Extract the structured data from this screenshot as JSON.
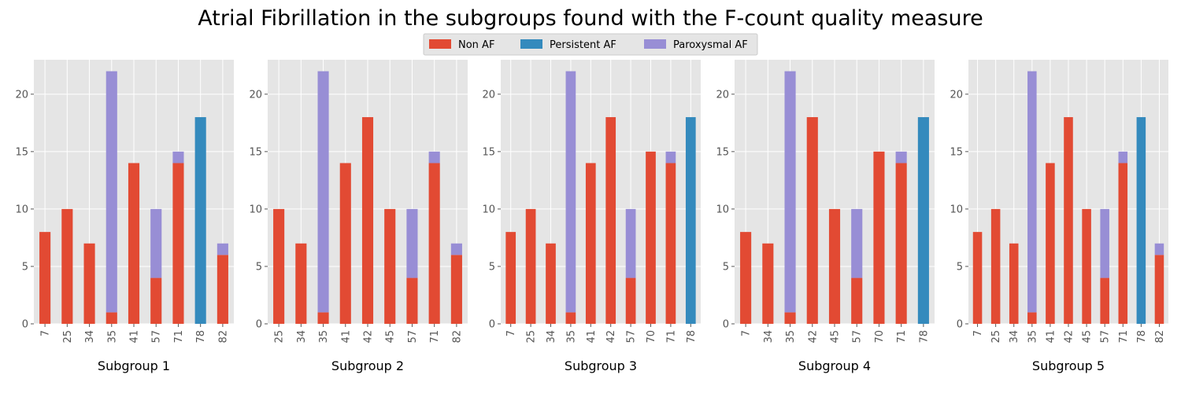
{
  "title": "Atrial Fibrillation in the subgroups found with the F-count quality measure",
  "legend": {
    "placement": "top-center",
    "entries": [
      {
        "name": "Non AF",
        "color": "#E24A33"
      },
      {
        "name": "Persistent AF",
        "color": "#348ABD"
      },
      {
        "name": "Paroxysmal AF",
        "color": "#988ED5"
      }
    ]
  },
  "colors": {
    "panel_background": "#E5E5E5",
    "grid": "#FFFFFF",
    "tick_text": "#555555"
  },
  "chart_data": [
    {
      "type": "bar",
      "stacked": true,
      "title": "",
      "xlabel": "Subgroup 1",
      "ylabel": "",
      "ylim": [
        0,
        23
      ],
      "yticks": [
        0,
        5,
        10,
        15,
        20
      ],
      "grid": true,
      "categories": [
        "7",
        "25",
        "34",
        "35",
        "41",
        "57",
        "71",
        "78",
        "82"
      ],
      "series": [
        {
          "name": "Non AF",
          "values": [
            8,
            10,
            7,
            1,
            14,
            4,
            14,
            0,
            6
          ]
        },
        {
          "name": "Persistent AF",
          "values": [
            0,
            0,
            0,
            0,
            0,
            0,
            0,
            18,
            0
          ]
        },
        {
          "name": "Paroxysmal AF",
          "values": [
            0,
            0,
            0,
            21,
            0,
            6,
            1,
            0,
            1
          ]
        }
      ]
    },
    {
      "type": "bar",
      "stacked": true,
      "title": "",
      "xlabel": "Subgroup 2",
      "ylabel": "",
      "ylim": [
        0,
        23
      ],
      "yticks": [
        0,
        5,
        10,
        15,
        20
      ],
      "grid": true,
      "categories": [
        "25",
        "34",
        "35",
        "41",
        "42",
        "45",
        "57",
        "71",
        "82"
      ],
      "series": [
        {
          "name": "Non AF",
          "values": [
            10,
            7,
            1,
            14,
            18,
            10,
            4,
            14,
            6
          ]
        },
        {
          "name": "Persistent AF",
          "values": [
            0,
            0,
            0,
            0,
            0,
            0,
            0,
            0,
            0
          ]
        },
        {
          "name": "Paroxysmal AF",
          "values": [
            0,
            0,
            21,
            0,
            0,
            0,
            6,
            1,
            1
          ]
        }
      ]
    },
    {
      "type": "bar",
      "stacked": true,
      "title": "",
      "xlabel": "Subgroup 3",
      "ylabel": "",
      "ylim": [
        0,
        23
      ],
      "yticks": [
        0,
        5,
        10,
        15,
        20
      ],
      "grid": true,
      "categories": [
        "7",
        "25",
        "34",
        "35",
        "41",
        "42",
        "57",
        "70",
        "71",
        "78"
      ],
      "series": [
        {
          "name": "Non AF",
          "values": [
            8,
            10,
            7,
            1,
            14,
            18,
            4,
            15,
            14,
            0
          ]
        },
        {
          "name": "Persistent AF",
          "values": [
            0,
            0,
            0,
            0,
            0,
            0,
            0,
            0,
            0,
            18
          ]
        },
        {
          "name": "Paroxysmal AF",
          "values": [
            0,
            0,
            0,
            21,
            0,
            0,
            6,
            0,
            1,
            0
          ]
        }
      ]
    },
    {
      "type": "bar",
      "stacked": true,
      "title": "",
      "xlabel": "Subgroup 4",
      "ylabel": "",
      "ylim": [
        0,
        23
      ],
      "yticks": [
        0,
        5,
        10,
        15,
        20
      ],
      "grid": true,
      "categories": [
        "7",
        "34",
        "35",
        "42",
        "45",
        "57",
        "70",
        "71",
        "78"
      ],
      "series": [
        {
          "name": "Non AF",
          "values": [
            8,
            7,
            1,
            18,
            10,
            4,
            15,
            14,
            0
          ]
        },
        {
          "name": "Persistent AF",
          "values": [
            0,
            0,
            0,
            0,
            0,
            0,
            0,
            0,
            18
          ]
        },
        {
          "name": "Paroxysmal AF",
          "values": [
            0,
            0,
            21,
            0,
            0,
            6,
            0,
            1,
            0
          ]
        }
      ]
    },
    {
      "type": "bar",
      "stacked": true,
      "title": "",
      "xlabel": "Subgroup 5",
      "ylabel": "",
      "ylim": [
        0,
        23
      ],
      "yticks": [
        0,
        5,
        10,
        15,
        20
      ],
      "grid": true,
      "categories": [
        "7",
        "25",
        "34",
        "35",
        "41",
        "42",
        "45",
        "57",
        "71",
        "78",
        "82"
      ],
      "series": [
        {
          "name": "Non AF",
          "values": [
            8,
            10,
            7,
            1,
            14,
            18,
            10,
            4,
            14,
            0,
            6
          ]
        },
        {
          "name": "Persistent AF",
          "values": [
            0,
            0,
            0,
            0,
            0,
            0,
            0,
            0,
            0,
            18,
            0
          ]
        },
        {
          "name": "Paroxysmal AF",
          "values": [
            0,
            0,
            0,
            21,
            0,
            0,
            0,
            6,
            1,
            0,
            1
          ]
        }
      ]
    }
  ]
}
